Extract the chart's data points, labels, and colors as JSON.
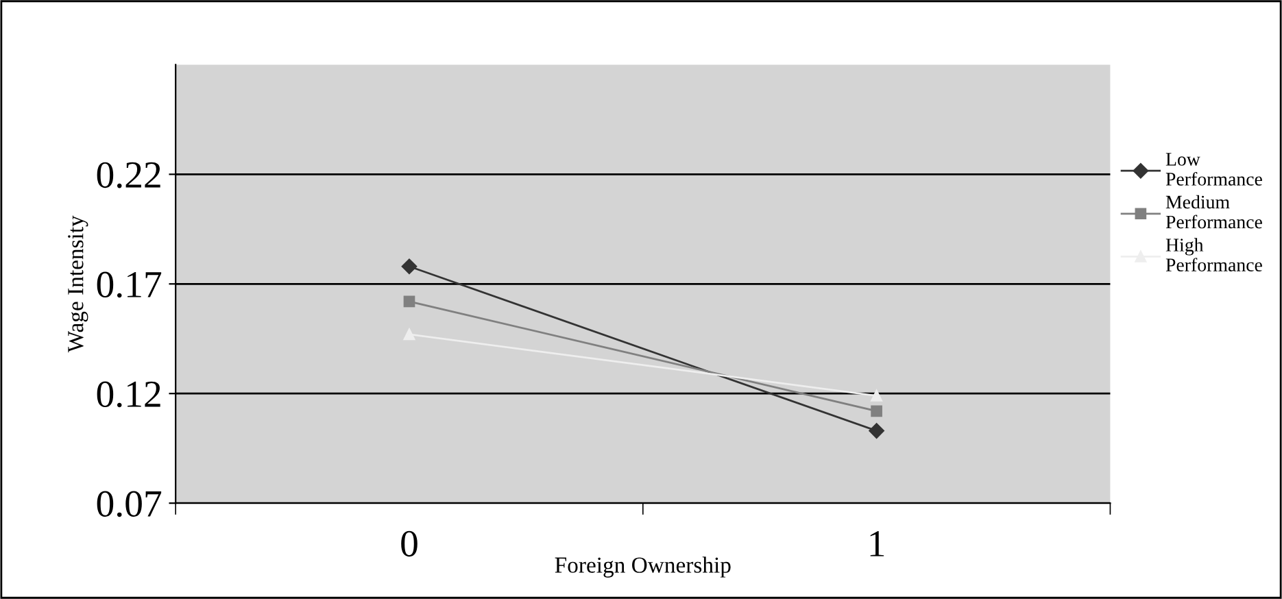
{
  "chart_data": {
    "type": "line",
    "xlabel": "Foreign Ownership",
    "ylabel": "Wage Intensity",
    "categories": [
      "0",
      "1"
    ],
    "series": [
      {
        "name": "Low Performance",
        "color": "#333333",
        "marker": "diamond",
        "values": [
          0.178,
          0.103
        ]
      },
      {
        "name": "Medium Performance",
        "color": "#808080",
        "marker": "square",
        "values": [
          0.162,
          0.112
        ]
      },
      {
        "name": "High Performance",
        "color": "#eeeeee",
        "marker": "triangle",
        "values": [
          0.147,
          0.119
        ]
      }
    ],
    "ylim": [
      0.07,
      0.27
    ],
    "yticks": [
      {
        "value": 0.07,
        "label": "0.07"
      },
      {
        "value": 0.12,
        "label": "0.12"
      },
      {
        "value": 0.17,
        "label": "0.17"
      },
      {
        "value": 0.22,
        "label": "0.22"
      }
    ],
    "grid": "y",
    "legend": "right"
  }
}
